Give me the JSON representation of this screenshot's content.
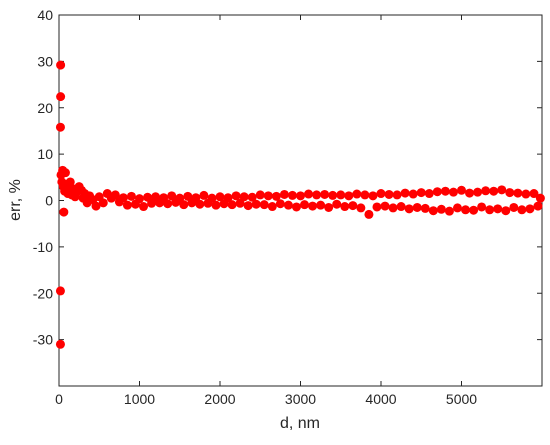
{
  "chart_data": {
    "type": "scatter",
    "title": "",
    "xlabel": "d, nm",
    "ylabel": "err, %",
    "xlim": [
      0,
      6000
    ],
    "ylim": [
      -40,
      40
    ],
    "x_ticks": [
      0,
      1000,
      2000,
      3000,
      4000,
      5000
    ],
    "y_ticks": [
      -30,
      -20,
      -10,
      0,
      10,
      20,
      30,
      40
    ],
    "grid": false,
    "legend": "none",
    "marker_color": "#ff0000",
    "series": [
      {
        "points": [
          [
            20,
            29.2
          ],
          [
            20,
            22.4
          ],
          [
            18,
            15.8
          ],
          [
            18,
            -19.5
          ],
          [
            18,
            -31.0
          ],
          [
            25,
            5.5
          ],
          [
            35,
            4.0
          ],
          [
            45,
            6.5
          ],
          [
            55,
            3.0
          ],
          [
            60,
            -2.5
          ],
          [
            70,
            2.0
          ],
          [
            80,
            6.0
          ],
          [
            95,
            3.5
          ],
          [
            110,
            1.5
          ],
          [
            125,
            2.8
          ],
          [
            140,
            4.0
          ],
          [
            160,
            1.2
          ],
          [
            180,
            2.5
          ],
          [
            200,
            0.8
          ],
          [
            220,
            1.8
          ],
          [
            250,
            3.0
          ],
          [
            280,
            2.2
          ],
          [
            300,
            0.5
          ],
          [
            320,
            1.5
          ],
          [
            350,
            -0.5
          ],
          [
            380,
            1.0
          ],
          [
            420,
            0.2
          ],
          [
            460,
            -1.2
          ],
          [
            500,
            0.8
          ],
          [
            550,
            -0.5
          ],
          [
            600,
            1.5
          ],
          [
            650,
            0.5
          ],
          [
            700,
            1.2
          ],
          [
            750,
            -0.3
          ],
          [
            800,
            0.6
          ],
          [
            850,
            -1.0
          ],
          [
            900,
            0.9
          ],
          [
            950,
            -0.8
          ],
          [
            1000,
            0.4
          ],
          [
            1050,
            -1.3
          ],
          [
            1100,
            0.7
          ],
          [
            1150,
            -0.6
          ],
          [
            1200,
            0.8
          ],
          [
            1250,
            -0.5
          ],
          [
            1300,
            0.6
          ],
          [
            1350,
            -0.7
          ],
          [
            1400,
            1.0
          ],
          [
            1450,
            -0.4
          ],
          [
            1500,
            0.5
          ],
          [
            1550,
            -0.9
          ],
          [
            1600,
            0.9
          ],
          [
            1650,
            -0.5
          ],
          [
            1700,
            0.6
          ],
          [
            1750,
            -0.8
          ],
          [
            1800,
            1.1
          ],
          [
            1850,
            -0.6
          ],
          [
            1900,
            0.5
          ],
          [
            1950,
            -1.0
          ],
          [
            2000,
            0.8
          ],
          [
            2050,
            -0.7
          ],
          [
            2100,
            0.6
          ],
          [
            2150,
            -0.9
          ],
          [
            2200,
            1.0
          ],
          [
            2250,
            -0.6
          ],
          [
            2300,
            0.8
          ],
          [
            2350,
            -1.1
          ],
          [
            2400,
            0.7
          ],
          [
            2450,
            -0.8
          ],
          [
            2500,
            1.2
          ],
          [
            2550,
            -0.9
          ],
          [
            2600,
            1.0
          ],
          [
            2650,
            -1.3
          ],
          [
            2700,
            0.9
          ],
          [
            2750,
            -0.7
          ],
          [
            2800,
            1.3
          ],
          [
            2850,
            -1.0
          ],
          [
            2900,
            1.1
          ],
          [
            2950,
            -1.4
          ],
          [
            3000,
            1.0
          ],
          [
            3050,
            -0.9
          ],
          [
            3100,
            1.4
          ],
          [
            3150,
            -1.2
          ],
          [
            3200,
            1.2
          ],
          [
            3250,
            -1.0
          ],
          [
            3300,
            1.3
          ],
          [
            3350,
            -1.5
          ],
          [
            3400,
            1.1
          ],
          [
            3450,
            -0.8
          ],
          [
            3500,
            1.2
          ],
          [
            3550,
            -1.3
          ],
          [
            3600,
            1.0
          ],
          [
            3650,
            -1.1
          ],
          [
            3700,
            1.4
          ],
          [
            3750,
            -1.6
          ],
          [
            3800,
            1.2
          ],
          [
            3850,
            -3.0
          ],
          [
            3900,
            1.0
          ],
          [
            3950,
            -1.4
          ],
          [
            4000,
            1.5
          ],
          [
            4050,
            -1.2
          ],
          [
            4100,
            1.3
          ],
          [
            4150,
            -1.6
          ],
          [
            4200,
            1.2
          ],
          [
            4250,
            -1.3
          ],
          [
            4300,
            1.6
          ],
          [
            4350,
            -1.8
          ],
          [
            4400,
            1.4
          ],
          [
            4450,
            -1.5
          ],
          [
            4500,
            1.7
          ],
          [
            4550,
            -1.7
          ],
          [
            4600,
            1.5
          ],
          [
            4650,
            -2.2
          ],
          [
            4700,
            1.9
          ],
          [
            4750,
            -1.9
          ],
          [
            4800,
            2.0
          ],
          [
            4850,
            -2.3
          ],
          [
            4900,
            1.8
          ],
          [
            4950,
            -1.6
          ],
          [
            5000,
            2.2
          ],
          [
            5050,
            -2.0
          ],
          [
            5100,
            1.6
          ],
          [
            5150,
            -2.1
          ],
          [
            5200,
            1.8
          ],
          [
            5250,
            -1.4
          ],
          [
            5300,
            2.1
          ],
          [
            5350,
            -2.0
          ],
          [
            5400,
            2.0
          ],
          [
            5450,
            -1.8
          ],
          [
            5500,
            2.3
          ],
          [
            5550,
            -2.2
          ],
          [
            5600,
            1.7
          ],
          [
            5650,
            -1.5
          ],
          [
            5700,
            1.6
          ],
          [
            5750,
            -2.0
          ],
          [
            5800,
            1.4
          ],
          [
            5850,
            -1.8
          ],
          [
            5900,
            1.5
          ],
          [
            5950,
            -1.2
          ],
          [
            5980,
            0.5
          ]
        ]
      }
    ]
  }
}
